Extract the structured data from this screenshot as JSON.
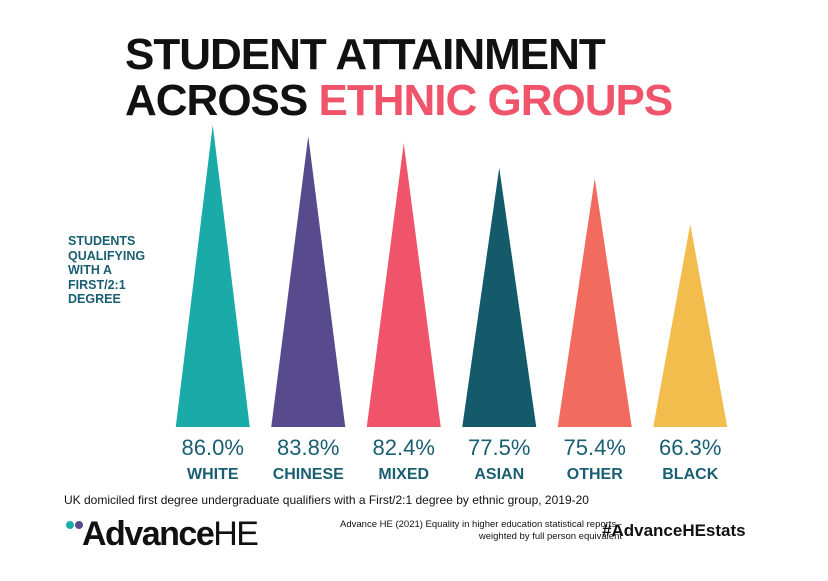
{
  "title": {
    "line1": "STUDENT ATTAINMENT",
    "line2_plain": "ACROSS ",
    "line2_accent": "ETHNIC GROUPS"
  },
  "ylabel": "STUDENTS\nQUALIFYING\nWITH A\nFIRST/2:1\nDEGREE",
  "chart_data": {
    "type": "bar",
    "title": "STUDENT ATTAINMENT ACROSS ETHNIC GROUPS",
    "ylabel": "STUDENTS QUALIFYING WITH A FIRST/2:1 DEGREE",
    "xlabel": "",
    "categories": [
      "WHITE",
      "CHINESE",
      "MIXED",
      "ASIAN",
      "OTHER",
      "BLACK"
    ],
    "values": [
      86.0,
      83.8,
      82.4,
      77.5,
      75.4,
      66.3
    ],
    "value_labels": [
      "86.0%",
      "83.8%",
      "82.4%",
      "77.5%",
      "75.4%",
      "66.3%"
    ],
    "colors": [
      "#1aaba9",
      "#574b8d",
      "#f0546b",
      "#145a6b",
      "#f16b5e",
      "#f3bd4e"
    ],
    "label_color": "#1a5e72",
    "grid": false,
    "legend": "none",
    "mark_shape": "triangle"
  },
  "footnote": "UK domiciled first degree undergraduate qualifiers with a First/2:1 degree by ethnic group, 2019-20",
  "logo": {
    "bold": "Advance",
    "light": "HE",
    "dot_colors": [
      "#1aaba9",
      "#574b8d"
    ]
  },
  "source": "Advance HE (2021) Equality in higher education statistical reports -\nweighted by full person equivalent",
  "hashtag": "#AdvanceHEstats"
}
